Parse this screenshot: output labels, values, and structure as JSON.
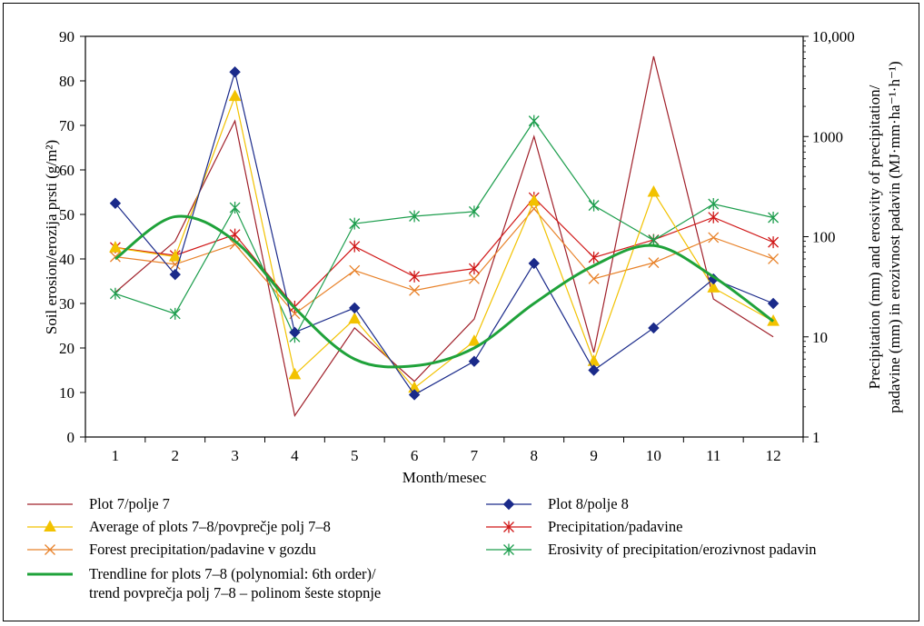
{
  "chart_data": {
    "type": "line",
    "x": [
      1,
      2,
      3,
      4,
      5,
      6,
      7,
      8,
      9,
      10,
      11,
      12
    ],
    "xlabel": "Month/mesec",
    "ylabel_left": "Soil erosion/erozija prsti (g/m²)",
    "ylabel_right_line1": "Precipitation (mm) and erosivity of precipitation/",
    "ylabel_right_line2": "padavine (mm) in erozivnost padavin (MJ·mm·ha⁻¹·h⁻¹)",
    "ylim_left": [
      0,
      90
    ],
    "yticks_left": [
      "0",
      "10",
      "20",
      "30",
      "40",
      "50",
      "60",
      "70",
      "80",
      "90"
    ],
    "ylim_right": [
      1,
      10000
    ],
    "yscale_right": "log",
    "yticks_right": [
      "1",
      "10",
      "100",
      "1000",
      "10,000"
    ],
    "grid": false,
    "legend_position": "bottom",
    "series": [
      {
        "key": "plot7",
        "name": "Plot 7/polje 7",
        "axis": "left",
        "color": "#a0202a",
        "marker": "none",
        "values": [
          32.5,
          44,
          71,
          4.8,
          24.5,
          12.5,
          26.5,
          67.5,
          19,
          85.5,
          31,
          22.5
        ]
      },
      {
        "key": "plot8",
        "name": "Plot 8/polje 8",
        "axis": "left",
        "color": "#1a2a8a",
        "marker": "diamond",
        "values": [
          52.5,
          36.5,
          82,
          23.5,
          29,
          9.5,
          17,
          39,
          15,
          24.5,
          35.5,
          30
        ]
      },
      {
        "key": "avg",
        "name": "Average of plots 7–8/povprečje polj 7–8",
        "axis": "left",
        "color": "#f2c200",
        "marker": "triangle",
        "values": [
          42.5,
          40.5,
          76.5,
          14,
          26.5,
          11,
          21.5,
          53,
          17,
          55,
          33.5,
          26
        ]
      },
      {
        "key": "precip",
        "name": "Precipitation/padavine",
        "axis": "right",
        "color": "#d01818",
        "marker": "star",
        "values": [
          78,
          65,
          105,
          20,
          80,
          40,
          48,
          245,
          62,
          93,
          156,
          88
        ]
      },
      {
        "key": "forest",
        "name": "Forest precipitation/padavine v gozdu",
        "axis": "right",
        "color": "#e8822a",
        "marker": "x",
        "values": [
          63,
          53,
          84,
          17,
          46,
          29,
          38,
          190,
          38,
          55,
          98,
          60
        ]
      },
      {
        "key": "erosivity",
        "name": "Erosivity of precipitation/erozivnost padavin",
        "axis": "right",
        "color": "#1e9e4e",
        "marker": "star",
        "values": [
          27,
          17,
          195,
          10,
          135,
          160,
          178,
          1430,
          205,
          92,
          212,
          155
        ]
      },
      {
        "key": "trend",
        "name": "Trendline for plots 7–8 (polynomial: 6th order)/",
        "name_line2": "trend povprečja polj 7–8 – polinom šeste stopnje",
        "axis": "left",
        "color": "#1fa23a",
        "marker": "none",
        "smooth": true,
        "values": [
          40,
          49.5,
          44,
          29,
          17.5,
          16,
          20,
          30,
          38.5,
          43,
          36,
          26
        ]
      }
    ]
  }
}
